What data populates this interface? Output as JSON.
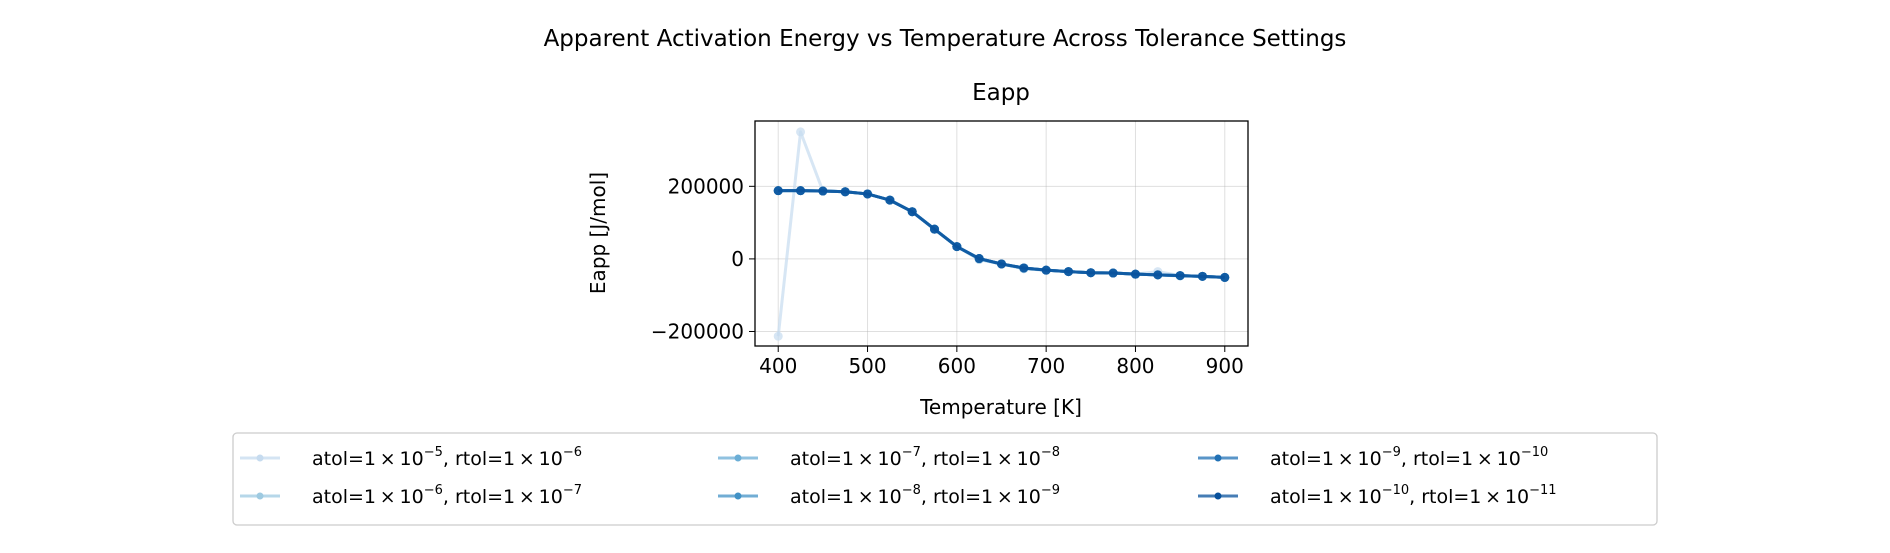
{
  "chart_data": {
    "type": "line",
    "title": "Apparent Activation Energy vs Temperature Across Tolerance Settings",
    "subtitle": "Eapp",
    "xlabel": "Temperature [K]",
    "ylabel": "Eapp [J/mol]",
    "xlim": [
      374,
      926
    ],
    "ylim": [
      -240000,
      380000
    ],
    "xticks": [
      400,
      500,
      600,
      700,
      800,
      900
    ],
    "yticks": [
      -200000,
      0,
      200000
    ],
    "ytick_labels": [
      "−200000",
      "0",
      "200000"
    ],
    "grid": true,
    "legend_placement": "bottom-center",
    "x": [
      400,
      425,
      450,
      475,
      500,
      525,
      550,
      575,
      600,
      625,
      650,
      675,
      700,
      725,
      750,
      775,
      800,
      825,
      850,
      875,
      900
    ],
    "series": [
      {
        "name": "atol=1×10^-5, rtol=1×10^-6",
        "color": "#c6dbef",
        "values": [
          -213000,
          350000,
          187000,
          185000,
          179000,
          162000,
          130000,
          82000,
          34000,
          -2000,
          -14000,
          -27000,
          -31000,
          -35000,
          -38000,
          -39000,
          -42000,
          -35000,
          -46000,
          -48000,
          -51000
        ]
      },
      {
        "name": "atol=1×10^-6, rtol=1×10^-7",
        "color": "#9ecae1",
        "values": [
          188000,
          188000,
          187000,
          185000,
          179000,
          162000,
          130000,
          82000,
          34000,
          -1000,
          -14000,
          -27000,
          -31000,
          -35000,
          -38000,
          -39000,
          -42000,
          -44000,
          -47000,
          -48000,
          -51000
        ]
      },
      {
        "name": "atol=1×10^-7, rtol=1×10^-8",
        "color": "#6baed6",
        "values": [
          188000,
          188000,
          187000,
          185000,
          179000,
          162000,
          130000,
          82000,
          34000,
          1000,
          -14000,
          -25000,
          -31000,
          -35000,
          -38000,
          -39000,
          -42000,
          -44000,
          -46000,
          -48000,
          -51000
        ]
      },
      {
        "name": "atol=1×10^-8, rtol=1×10^-9",
        "color": "#4292c6",
        "values": [
          188000,
          188000,
          187000,
          185000,
          179000,
          162000,
          130000,
          82000,
          34000,
          1000,
          -14000,
          -25000,
          -31000,
          -35000,
          -38000,
          -39000,
          -42000,
          -44000,
          -46000,
          -48000,
          -51000
        ]
      },
      {
        "name": "atol=1×10^-9, rtol=1×10^-10",
        "color": "#2171b5",
        "values": [
          188000,
          188000,
          187000,
          185000,
          179000,
          162000,
          130000,
          82000,
          34000,
          1000,
          -14000,
          -25000,
          -31000,
          -35000,
          -38000,
          -39000,
          -42000,
          -44000,
          -46000,
          -48000,
          -51000
        ]
      },
      {
        "name": "atol=1×10^-10, rtol=1×10^-11",
        "color": "#08519c",
        "values": [
          188000,
          188000,
          187000,
          185000,
          179000,
          162000,
          130000,
          82000,
          34000,
          1000,
          -14000,
          -25000,
          -31000,
          -35000,
          -38000,
          -39000,
          -42000,
          -44000,
          -46000,
          -48000,
          -51000
        ]
      }
    ],
    "legend": [
      {
        "atol_exp": "−5",
        "rtol_exp": "−6"
      },
      {
        "atol_exp": "−6",
        "rtol_exp": "−7"
      },
      {
        "atol_exp": "−7",
        "rtol_exp": "−8"
      },
      {
        "atol_exp": "−8",
        "rtol_exp": "−9"
      },
      {
        "atol_exp": "−9",
        "rtol_exp": "−10"
      },
      {
        "atol_exp": "−10",
        "rtol_exp": "−11"
      }
    ]
  }
}
